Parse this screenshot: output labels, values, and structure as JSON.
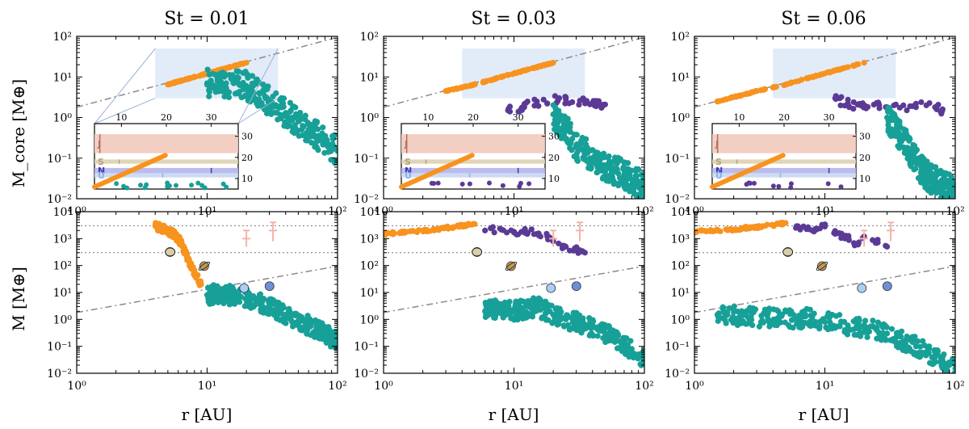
{
  "colors": {
    "orange": "#f7931e",
    "purple": "#5b3a96",
    "teal": "#17a097",
    "highlight_box": "#dde7f7",
    "guide_line": "#8a8a8a",
    "uranus_color": "#a9cff5",
    "neptune_color": "#6f8fd8",
    "jupiter_band": "#f2c9bd",
    "saturn_band": "#ddd0b1",
    "neptune_band": "#b6b2ee",
    "uranus_band": "#c7d9f2",
    "exoplanet_marker": "#f5b3ab"
  },
  "columns": [
    {
      "title": "St = 0.01"
    },
    {
      "title": "St = 0.03"
    },
    {
      "title": "St = 0.06"
    }
  ],
  "rows": [
    {
      "ylabel": "M_core [M⊕]",
      "ylim": [
        0.01,
        100
      ],
      "yticks": [
        "10⁻²",
        "10⁻¹",
        "10⁰",
        "10¹",
        "10²"
      ]
    },
    {
      "ylabel": "M [M⊕]",
      "ylim": [
        0.01,
        10000
      ],
      "yticks": [
        "10⁻²",
        "10⁻¹",
        "10⁰",
        "10¹",
        "10²",
        "10³",
        "10⁴"
      ]
    }
  ],
  "xaxis": {
    "label": "r [AU]",
    "xlim": [
      1,
      100
    ],
    "ticks": [
      "10⁰",
      "10¹",
      "10²"
    ],
    "scale": "log"
  },
  "inset": {
    "xticks": [
      "10",
      "20",
      "30"
    ],
    "yticks": [
      "10",
      "20",
      "30"
    ],
    "planet_labels": [
      "J",
      "S",
      "N",
      "U"
    ]
  },
  "chart_data": [
    {
      "type": "scatter",
      "panel": "top-left",
      "title": "St = 0.01",
      "xscale": "log",
      "yscale": "log",
      "xlim": [
        1,
        100
      ],
      "ylim": [
        0.01,
        100
      ],
      "ylabel": "M_core [M⊕]",
      "reference_line": {
        "x": [
          1,
          100
        ],
        "y": [
          1.8,
          95
        ]
      },
      "highlight_region": {
        "x": [
          4,
          35
        ],
        "y": [
          3,
          50
        ]
      },
      "series": [
        {
          "color_role": "orange",
          "x": [
            5.0,
            5.5,
            6.0,
            6.5,
            7.0,
            7.5,
            8.0,
            9.0,
            10.0,
            11.0,
            12.0,
            13.0,
            14.0,
            15.0,
            16.0,
            17.0,
            18.0,
            19.0,
            20.0
          ],
          "y": [
            6.5,
            7.1,
            7.7,
            8.3,
            8.8,
            9.4,
            10.0,
            11.1,
            12.2,
            13.3,
            14.4,
            15.4,
            16.4,
            17.5,
            18.5,
            19.5,
            20.5,
            21.5,
            22.5
          ]
        },
        {
          "color_role": "teal",
          "x": [
            10,
            12,
            14,
            16,
            18,
            20,
            22,
            25,
            28,
            30,
            35,
            40,
            45,
            50,
            55,
            60,
            65,
            70,
            75,
            80,
            85,
            90,
            95,
            100
          ],
          "y": [
            7,
            8,
            7,
            7,
            6.5,
            6,
            5,
            4,
            3,
            2.5,
            1.8,
            1.3,
            1.0,
            0.8,
            0.6,
            0.5,
            0.4,
            0.35,
            0.3,
            0.25,
            0.22,
            0.2,
            0.17,
            0.15
          ]
        }
      ]
    },
    {
      "type": "scatter",
      "panel": "top-middle",
      "title": "St = 0.03",
      "xscale": "log",
      "yscale": "log",
      "xlim": [
        1,
        100
      ],
      "ylim": [
        0.01,
        100
      ],
      "reference_line": {
        "x": [
          1,
          100
        ],
        "y": [
          1.8,
          95
        ]
      },
      "highlight_region": {
        "x": [
          4,
          35
        ],
        "y": [
          3,
          50
        ]
      },
      "series": [
        {
          "color_role": "orange",
          "x": [
            3.0,
            4.0,
            5.0,
            6.0,
            7.0,
            8.0,
            9.0,
            10.0,
            12.0,
            14.0,
            16.0,
            18.0,
            20.0
          ],
          "y": [
            4.5,
            5.5,
            6.5,
            7.7,
            8.8,
            10.0,
            11.1,
            12.2,
            14.4,
            16.4,
            18.5,
            20.5,
            22.5
          ]
        },
        {
          "color_role": "purple",
          "x": [
            9,
            12,
            15,
            18,
            22,
            25,
            28,
            32,
            36,
            40,
            45,
            50
          ],
          "y": [
            1.5,
            1.8,
            2.5,
            2.2,
            3.0,
            2.8,
            2.4,
            2.6,
            2.5,
            2.3,
            2.2,
            2.1
          ]
        },
        {
          "color_role": "teal",
          "x": [
            20,
            22,
            25,
            28,
            30,
            35,
            40,
            45,
            50,
            60,
            70,
            80,
            90,
            100
          ],
          "y": [
            1.2,
            0.8,
            0.5,
            0.3,
            0.2,
            0.15,
            0.1,
            0.08,
            0.06,
            0.05,
            0.04,
            0.03,
            0.025,
            0.02
          ]
        }
      ]
    },
    {
      "type": "scatter",
      "panel": "top-right",
      "title": "St = 0.06",
      "xscale": "log",
      "yscale": "log",
      "xlim": [
        1,
        100
      ],
      "ylim": [
        0.01,
        100
      ],
      "reference_line": {
        "x": [
          1,
          100
        ],
        "y": [
          1.8,
          95
        ]
      },
      "highlight_region": {
        "x": [
          4,
          35
        ],
        "y": [
          3,
          50
        ]
      },
      "series": [
        {
          "color_role": "orange",
          "x": [
            1.5,
            2.0,
            2.5,
            3.0,
            4.0,
            5.0,
            6.0,
            8.0,
            10.0,
            12.0,
            15.0,
            18.0,
            20.0
          ],
          "y": [
            2.5,
            3.2,
            3.8,
            4.5,
            5.5,
            6.5,
            7.7,
            10.0,
            12.2,
            14.4,
            17.5,
            20.5,
            22.5
          ]
        },
        {
          "color_role": "purple",
          "x": [
            12,
            15,
            20,
            25,
            30,
            35,
            40,
            45,
            50,
            60,
            70,
            80
          ],
          "y": [
            3.0,
            2.2,
            2.0,
            2.3,
            1.8,
            2.1,
            2.0,
            1.9,
            2.2,
            2.0,
            1.8,
            1.6
          ]
        },
        {
          "color_role": "teal",
          "x": [
            30,
            35,
            40,
            45,
            50,
            55,
            60,
            65,
            70,
            75,
            80,
            85,
            90,
            95,
            100
          ],
          "y": [
            1.0,
            0.5,
            0.3,
            0.15,
            0.08,
            0.05,
            0.04,
            0.03,
            0.03,
            0.025,
            0.02,
            0.02,
            0.018,
            0.015,
            0.012
          ]
        }
      ]
    },
    {
      "type": "scatter",
      "panel": "bottom-left",
      "xscale": "log",
      "yscale": "log",
      "xlim": [
        1,
        100
      ],
      "ylim": [
        0.01,
        10000
      ],
      "ylabel": "M [M⊕]",
      "reference_line": {
        "x": [
          1,
          100
        ],
        "y": [
          1.8,
          95
        ]
      },
      "reference_levels": [
        3000,
        300
      ],
      "series": [
        {
          "color_role": "orange",
          "x": [
            4.0,
            4.5,
            5.0,
            5.5,
            6.0,
            6.5,
            7.0,
            8.0,
            9.0
          ],
          "y": [
            3000,
            2500,
            2000,
            1500,
            1000,
            500,
            200,
            50,
            20
          ]
        },
        {
          "color_role": "teal",
          "x": [
            10,
            12,
            15,
            18,
            20,
            25,
            30,
            35,
            40,
            50,
            60,
            70,
            80,
            90,
            100
          ],
          "y": [
            8,
            9,
            8,
            7,
            6,
            4,
            3,
            2,
            1.5,
            0.9,
            0.6,
            0.4,
            0.3,
            0.2,
            0.15
          ]
        }
      ],
      "solar_system_markers": [
        {
          "name": "Jupiter",
          "x": 5.2,
          "y": 318
        },
        {
          "name": "Saturn",
          "x": 9.5,
          "y": 95
        },
        {
          "name": "Uranus",
          "x": 19.2,
          "y": 14.5
        },
        {
          "name": "Neptune",
          "x": 30.1,
          "y": 17.1
        }
      ],
      "exoplanet_markers": [
        {
          "x": 20,
          "y": 1000,
          "y_range": [
            500,
            2000
          ]
        },
        {
          "x": 32,
          "y": 2000,
          "y_range": [
            800,
            4000
          ]
        }
      ]
    },
    {
      "type": "scatter",
      "panel": "bottom-middle",
      "xscale": "log",
      "yscale": "log",
      "xlim": [
        1,
        100
      ],
      "ylim": [
        0.01,
        10000
      ],
      "reference_line": {
        "x": [
          1,
          100
        ],
        "y": [
          1.8,
          95
        ]
      },
      "reference_levels": [
        3000,
        300
      ],
      "series": [
        {
          "color_role": "orange",
          "x": [
            1.0,
            1.5,
            2.0,
            2.5,
            3.0,
            3.5,
            4.0,
            4.5,
            5.0
          ],
          "y": [
            1500,
            1800,
            2000,
            2200,
            2500,
            2700,
            3000,
            3200,
            3500
          ]
        },
        {
          "color_role": "purple",
          "x": [
            6,
            8,
            10,
            12,
            15,
            18,
            20,
            25,
            30,
            35
          ],
          "y": [
            2000,
            2200,
            1800,
            2000,
            1500,
            1200,
            800,
            500,
            400,
            300
          ]
        },
        {
          "color_role": "teal",
          "x": [
            6,
            8,
            10,
            15,
            20,
            25,
            30,
            40,
            50,
            60,
            70,
            80,
            90,
            100
          ],
          "y": [
            2,
            2.5,
            2,
            3,
            1.5,
            1,
            0.8,
            0.5,
            0.3,
            0.2,
            0.1,
            0.08,
            0.05,
            0.03
          ]
        }
      ],
      "solar_system_markers": [
        {
          "name": "Jupiter",
          "x": 5.2,
          "y": 318
        },
        {
          "name": "Saturn",
          "x": 9.5,
          "y": 95
        },
        {
          "name": "Uranus",
          "x": 19.2,
          "y": 14.5
        },
        {
          "name": "Neptune",
          "x": 30.1,
          "y": 17.1
        }
      ],
      "exoplanet_markers": [
        {
          "x": 20,
          "y": 1000,
          "y_range": [
            500,
            2000
          ]
        },
        {
          "x": 32,
          "y": 2000,
          "y_range": [
            800,
            4000
          ]
        }
      ]
    },
    {
      "type": "scatter",
      "panel": "bottom-right",
      "xscale": "log",
      "yscale": "log",
      "xlim": [
        1,
        100
      ],
      "ylim": [
        0.01,
        10000
      ],
      "reference_line": {
        "x": [
          1,
          100
        ],
        "y": [
          1.8,
          95
        ]
      },
      "reference_levels": [
        3000,
        300
      ],
      "series": [
        {
          "color_role": "orange",
          "x": [
            1.0,
            1.5,
            2.0,
            2.5,
            3.0,
            3.5,
            4.0,
            4.5,
            5.0
          ],
          "y": [
            1800,
            2000,
            2200,
            2500,
            2700,
            3000,
            3200,
            3500,
            3800
          ]
        },
        {
          "color_role": "purple",
          "x": [
            6,
            8,
            10,
            12,
            15,
            18,
            20,
            25,
            30
          ],
          "y": [
            2500,
            2000,
            2800,
            1500,
            1000,
            600,
            1200,
            800,
            500
          ]
        },
        {
          "color_role": "teal",
          "x": [
            1.5,
            6,
            8,
            10,
            15,
            20,
            25,
            30,
            40,
            50,
            60,
            70,
            80,
            90,
            100
          ],
          "y": [
            1.5,
            1,
            1.2,
            0.8,
            0.6,
            0.5,
            0.4,
            0.3,
            0.15,
            0.1,
            0.06,
            0.04,
            0.03,
            0.02,
            0.015
          ]
        }
      ],
      "solar_system_markers": [
        {
          "name": "Jupiter",
          "x": 5.2,
          "y": 318
        },
        {
          "name": "Saturn",
          "x": 9.5,
          "y": 95
        },
        {
          "name": "Uranus",
          "x": 19.2,
          "y": 14.5
        },
        {
          "name": "Neptune",
          "x": 30.1,
          "y": 17.1
        }
      ],
      "exoplanet_markers": [
        {
          "x": 20,
          "y": 1000,
          "y_range": [
            500,
            2000
          ]
        },
        {
          "x": 32,
          "y": 2000,
          "y_range": [
            800,
            4000
          ]
        }
      ]
    }
  ]
}
